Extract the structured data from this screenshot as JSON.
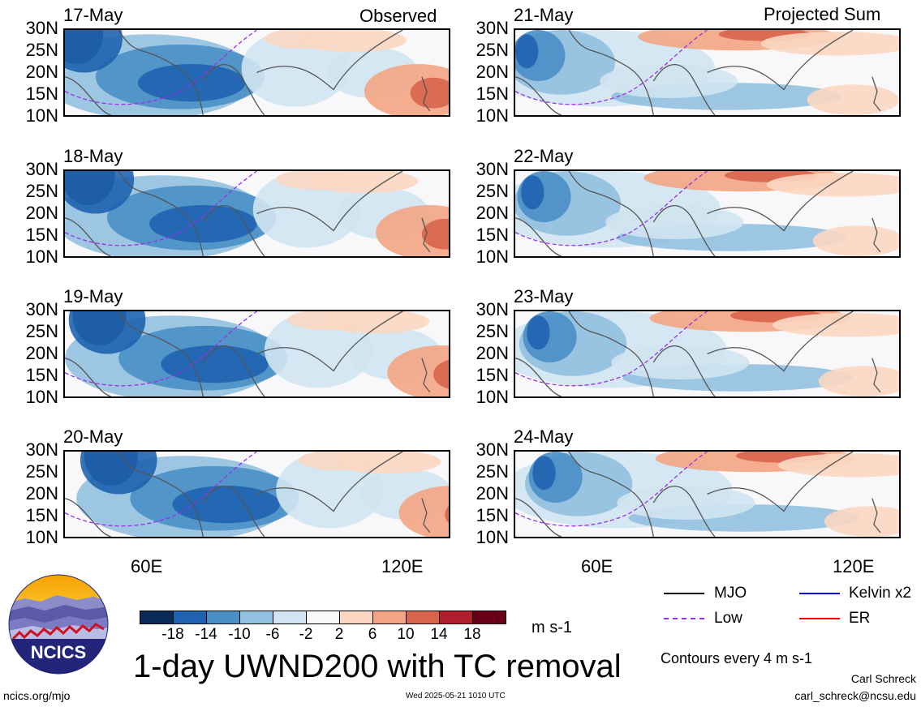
{
  "headers": {
    "left": "Observed",
    "right": "Projected Sum"
  },
  "panels": [
    {
      "date": "17-May",
      "col": 0,
      "row": 0
    },
    {
      "date": "18-May",
      "col": 0,
      "row": 1
    },
    {
      "date": "19-May",
      "col": 0,
      "row": 2
    },
    {
      "date": "20-May",
      "col": 0,
      "row": 3
    },
    {
      "date": "21-May",
      "col": 1,
      "row": 0
    },
    {
      "date": "22-May",
      "col": 1,
      "row": 1
    },
    {
      "date": "23-May",
      "col": 1,
      "row": 2
    },
    {
      "date": "24-May",
      "col": 1,
      "row": 3
    }
  ],
  "lat_labels": [
    "30N",
    "25N",
    "20N",
    "15N",
    "10N"
  ],
  "lon_labels": [
    "60E",
    "120E"
  ],
  "colorbar": {
    "colors": [
      "#0a2a5a",
      "#1f63b0",
      "#4a8fc6",
      "#92c0df",
      "#d0e4f1",
      "#f8f8f8",
      "#fbd7c2",
      "#f3a583",
      "#d9644c",
      "#b01d2c",
      "#6a0017"
    ],
    "labels": [
      "-18",
      "-14",
      "-10",
      "-6",
      "-2",
      "2",
      "6",
      "10",
      "14",
      "18"
    ],
    "units": "m s-1"
  },
  "legend": {
    "mjo": {
      "label": "MJO",
      "color": "#000000"
    },
    "kelvin": {
      "label": "Kelvin x2",
      "color": "#0000ff"
    },
    "low": {
      "label": "Low",
      "color": "#9a30e8"
    },
    "er": {
      "label": "ER",
      "color": "#ff0000"
    }
  },
  "title": "1-day UWND200 with TC removal",
  "contour_note": "Contours every 4 m s-1",
  "logo_text": "NCICS",
  "footer": {
    "url": "ncics.org/mjo",
    "timestamp": "Wed 2025-05-21 1010 UTC",
    "author": "Carl Schreck",
    "email": "carl_schreck@ncsu.edu"
  }
}
